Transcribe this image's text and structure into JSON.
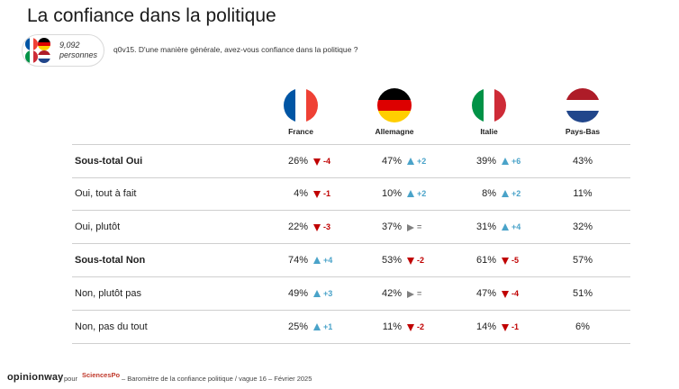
{
  "title": "La confiance dans la politique",
  "sample": {
    "count": "9,092",
    "unit": "personnes"
  },
  "question": "q0v15. D'une manière générale, avez-vous confiance dans la politique ?",
  "countries": [
    {
      "name": "France",
      "flag": [
        "#0055a4",
        "#ffffff",
        "#ef4135"
      ]
    },
    {
      "name": "Allemagne",
      "flag": [
        "#000000",
        "#dd0000",
        "#ffce00"
      ]
    },
    {
      "name": "Italie",
      "flag": [
        "#009246",
        "#ffffff",
        "#ce2b37"
      ]
    },
    {
      "name": "Pays-Bas",
      "flag": [
        "#ae1c28",
        "#ffffff",
        "#21468b"
      ]
    }
  ],
  "rows": [
    {
      "label": "Sous-total Oui",
      "bold": true,
      "cells": [
        {
          "value": "26%",
          "trend": "down",
          "delta": "-4"
        },
        {
          "value": "47%",
          "trend": "up",
          "delta": "+2"
        },
        {
          "value": "39%",
          "trend": "up",
          "delta": "+6"
        },
        {
          "value": "43%",
          "trend": "",
          "delta": ""
        }
      ]
    },
    {
      "label": "Oui, tout à fait",
      "bold": false,
      "cells": [
        {
          "value": "4%",
          "trend": "down",
          "delta": "-1"
        },
        {
          "value": "10%",
          "trend": "up",
          "delta": "+2"
        },
        {
          "value": "8%",
          "trend": "up",
          "delta": "+2"
        },
        {
          "value": "11%",
          "trend": "",
          "delta": ""
        }
      ]
    },
    {
      "label": "Oui, plutôt",
      "bold": false,
      "cells": [
        {
          "value": "22%",
          "trend": "down",
          "delta": "-3"
        },
        {
          "value": "37%",
          "trend": "same",
          "delta": "="
        },
        {
          "value": "31%",
          "trend": "up",
          "delta": "+4"
        },
        {
          "value": "32%",
          "trend": "",
          "delta": ""
        }
      ]
    },
    {
      "label": "Sous-total Non",
      "bold": true,
      "cells": [
        {
          "value": "74%",
          "trend": "up",
          "delta": "+4"
        },
        {
          "value": "53%",
          "trend": "down",
          "delta": "-2"
        },
        {
          "value": "61%",
          "trend": "down",
          "delta": "-5"
        },
        {
          "value": "57%",
          "trend": "",
          "delta": ""
        }
      ]
    },
    {
      "label": "Non, plutôt pas",
      "bold": false,
      "cells": [
        {
          "value": "49%",
          "trend": "up",
          "delta": "+3"
        },
        {
          "value": "42%",
          "trend": "same",
          "delta": "="
        },
        {
          "value": "47%",
          "trend": "down",
          "delta": "-4"
        },
        {
          "value": "51%",
          "trend": "",
          "delta": ""
        }
      ]
    },
    {
      "label": "Non, pas du tout",
      "bold": false,
      "cells": [
        {
          "value": "25%",
          "trend": "up",
          "delta": "+1"
        },
        {
          "value": "11%",
          "trend": "down",
          "delta": "-2"
        },
        {
          "value": "14%",
          "trend": "down",
          "delta": "-1"
        },
        {
          "value": "6%",
          "trend": "",
          "delta": ""
        }
      ]
    }
  ],
  "footer": {
    "logo": "opinionway",
    "pour": "pour",
    "partner": "SciencesPo",
    "text": "–  Baromètre de la confiance politique / vague 16 – Février 2025"
  },
  "colors": {
    "up": "#4aa3c9",
    "down": "#c00000",
    "same": "#808080"
  }
}
